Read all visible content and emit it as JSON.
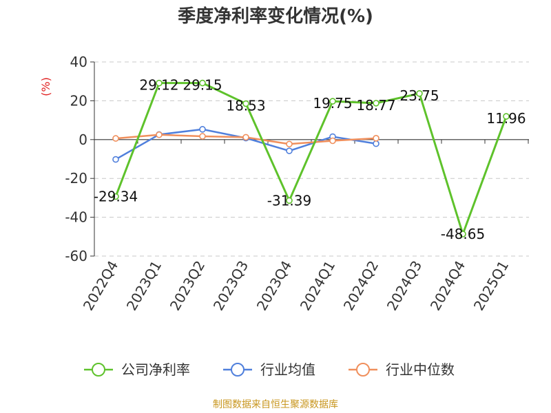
{
  "chart_data": {
    "type": "line",
    "title": "季度净利率变化情况(%)",
    "ylabel": "(%)",
    "xlabel": "",
    "ylim": [
      -60,
      40
    ],
    "yticks": [
      40,
      20,
      0,
      -20,
      -40,
      -60
    ],
    "grid": "horizontal-dashed",
    "legend_position": "bottom",
    "categories": [
      "2022Q4",
      "2023Q1",
      "2023Q2",
      "2023Q3",
      "2023Q4",
      "2024Q1",
      "2024Q2",
      "2024Q3",
      "2024Q4",
      "2025Q1"
    ],
    "series": [
      {
        "name": "公司净利率",
        "color": "#5ec22b",
        "values": [
          -29.34,
          29.12,
          29.15,
          18.53,
          -31.39,
          19.75,
          18.77,
          23.75,
          -48.65,
          11.96
        ],
        "labels": [
          "-29.34",
          "29.12",
          "29.15",
          "18.53",
          "-31.39",
          "19.75",
          "18.77",
          "23.75",
          "-48.65",
          "11.96"
        ]
      },
      {
        "name": "行业均值",
        "color": "#4f7fdc",
        "values": [
          -10.2,
          2.6,
          5.3,
          0.8,
          -5.8,
          1.5,
          -2.1,
          null,
          null,
          null
        ]
      },
      {
        "name": "行业中位数",
        "color": "#f08f5c",
        "values": [
          0.6,
          2.5,
          1.7,
          1.2,
          -2.3,
          -0.6,
          0.7,
          null,
          null,
          null
        ]
      }
    ]
  },
  "footer": {
    "source": "制图数据来自恒生聚源数据库"
  }
}
